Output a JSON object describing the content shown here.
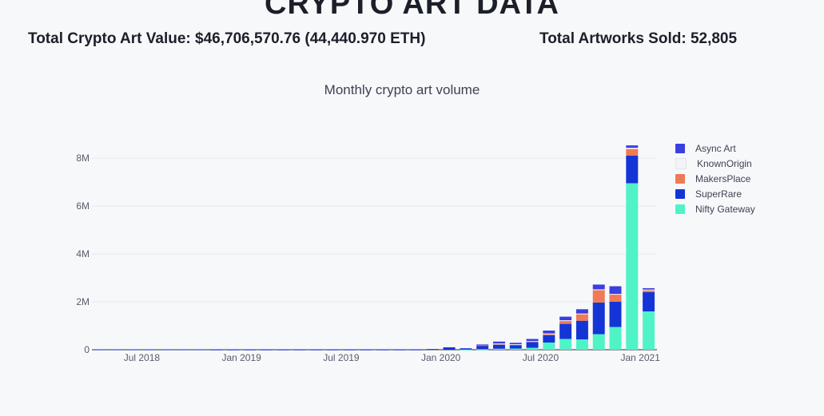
{
  "header": {
    "title": "CRYPTO ART DATA",
    "total_value_label": "Total Crypto Art Value: $46,706,570.76 (44,440.970 ETH)",
    "total_sold_label": "Total Artworks Sold: 52,805"
  },
  "chart_data": {
    "type": "bar",
    "stacked": true,
    "title": "Monthly crypto art volume",
    "xlabel": "",
    "ylabel": "",
    "ylim": [
      0,
      8600000
    ],
    "yticks": [
      0,
      2000000,
      4000000,
      6000000,
      8000000
    ],
    "ytick_labels": [
      "0",
      "2M",
      "4M",
      "6M",
      "8M"
    ],
    "xticks": [
      "2018-07",
      "2019-01",
      "2019-07",
      "2020-01",
      "2020-07",
      "2021-01"
    ],
    "xtick_labels": [
      "Jul 2018",
      "Jan 2019",
      "Jul 2019",
      "Jan 2020",
      "Jul 2020",
      "Jan 2021"
    ],
    "grid": true,
    "legend_position": "top-right",
    "categories": [
      "2018-04",
      "2018-05",
      "2018-06",
      "2018-07",
      "2018-08",
      "2018-09",
      "2018-10",
      "2018-11",
      "2018-12",
      "2019-01",
      "2019-02",
      "2019-03",
      "2019-04",
      "2019-05",
      "2019-06",
      "2019-07",
      "2019-08",
      "2019-09",
      "2019-10",
      "2019-11",
      "2019-12",
      "2020-01",
      "2020-02",
      "2020-03",
      "2020-04",
      "2020-05",
      "2020-06",
      "2020-07",
      "2020-08",
      "2020-09",
      "2020-10",
      "2020-11",
      "2020-12",
      "2021-01"
    ],
    "series": [
      {
        "name": "Nifty Gateway",
        "color": "#4ff3c6",
        "values": [
          0,
          0,
          0,
          0,
          0,
          0,
          0,
          0,
          0,
          0,
          0,
          0,
          0,
          0,
          0,
          0,
          0,
          0,
          0,
          0,
          0,
          0,
          10000,
          20000,
          40000,
          50000,
          80000,
          300000,
          450000,
          430000,
          650000,
          950000,
          6950000,
          1600000
        ]
      },
      {
        "name": "SuperRare",
        "color": "#1435d6",
        "values": [
          15000,
          15000,
          15000,
          15000,
          15000,
          15000,
          15000,
          10000,
          10000,
          10000,
          10000,
          10000,
          10000,
          10000,
          10000,
          10000,
          10000,
          10000,
          10000,
          10000,
          30000,
          100000,
          50000,
          160000,
          170000,
          150000,
          240000,
          310000,
          630000,
          780000,
          1320000,
          1050000,
          1150000,
          800000
        ]
      },
      {
        "name": "MakersPlace",
        "color": "#f07a55",
        "values": [
          0,
          0,
          0,
          0,
          0,
          0,
          0,
          0,
          0,
          0,
          0,
          0,
          0,
          0,
          0,
          0,
          0,
          0,
          0,
          0,
          0,
          0,
          0,
          10000,
          40000,
          20000,
          30000,
          60000,
          130000,
          280000,
          520000,
          300000,
          280000,
          80000
        ]
      },
      {
        "name": "KnownOrigin",
        "color": "#f2f4f6",
        "values": [
          0,
          0,
          0,
          0,
          0,
          0,
          0,
          0,
          0,
          0,
          0,
          0,
          0,
          0,
          0,
          0,
          0,
          0,
          0,
          0,
          0,
          0,
          0,
          0,
          10000,
          10000,
          10000,
          10000,
          20000,
          20000,
          30000,
          30000,
          50000,
          30000
        ]
      },
      {
        "name": "Async Art",
        "color": "#3a3fe0",
        "values": [
          0,
          0,
          0,
          0,
          0,
          0,
          0,
          0,
          0,
          0,
          0,
          0,
          0,
          0,
          0,
          0,
          0,
          0,
          0,
          0,
          0,
          0,
          0,
          30000,
          80000,
          60000,
          90000,
          120000,
          150000,
          180000,
          200000,
          320000,
          100000,
          60000
        ]
      }
    ]
  }
}
